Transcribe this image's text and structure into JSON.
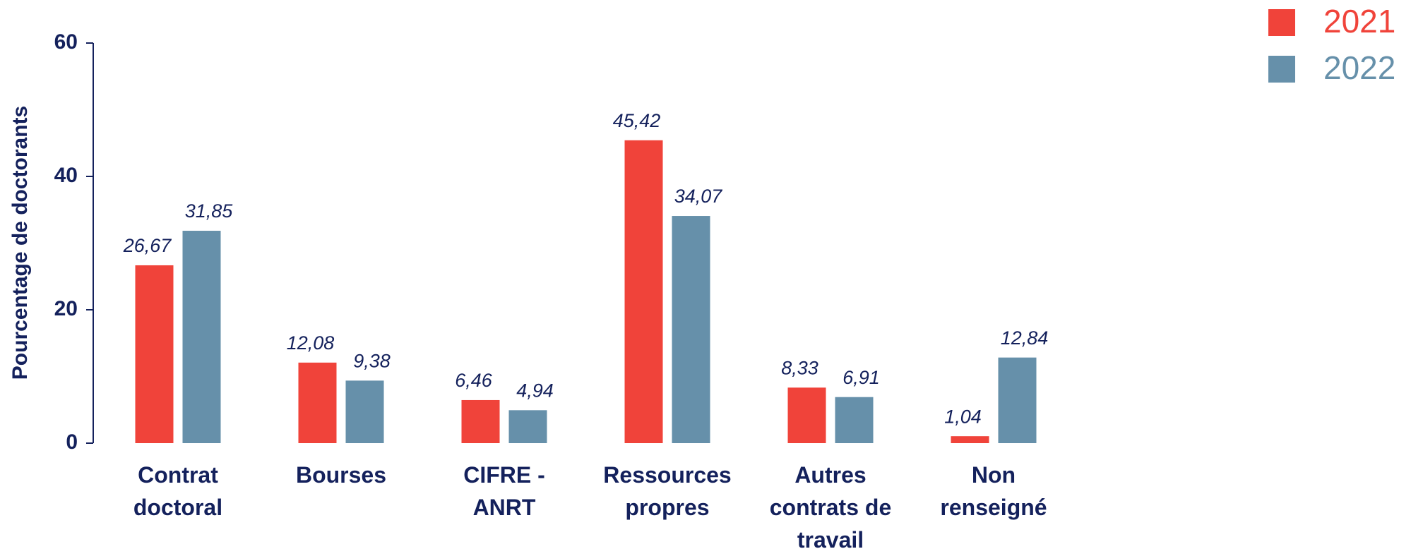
{
  "chart_data": {
    "type": "bar",
    "y_label": "Pourcentage de doctorants",
    "categories": [
      "Contrat doctoral",
      "Bourses",
      "CIFRE - ANRT",
      "Ressources propres",
      "Autres contrats de travail",
      "Non renseigné"
    ],
    "series": [
      {
        "name": "2021",
        "color": "#f0433a",
        "values": [
          26.67,
          12.08,
          6.46,
          45.42,
          8.33,
          1.04
        ],
        "value_labels": [
          "26,67",
          "12,08",
          "6,46",
          "45,42",
          "8,33",
          "1,04"
        ]
      },
      {
        "name": "2022",
        "color": "#6690aa",
        "values": [
          31.85,
          9.38,
          4.94,
          34.07,
          6.91,
          12.84
        ],
        "value_labels": [
          "31,85",
          "9,38",
          "4,94",
          "34,07",
          "6,91",
          "12,84"
        ]
      }
    ],
    "ylim": [
      0,
      60
    ],
    "yticks": [
      0,
      20,
      40,
      60
    ],
    "grid": false,
    "legend": "top-right"
  }
}
